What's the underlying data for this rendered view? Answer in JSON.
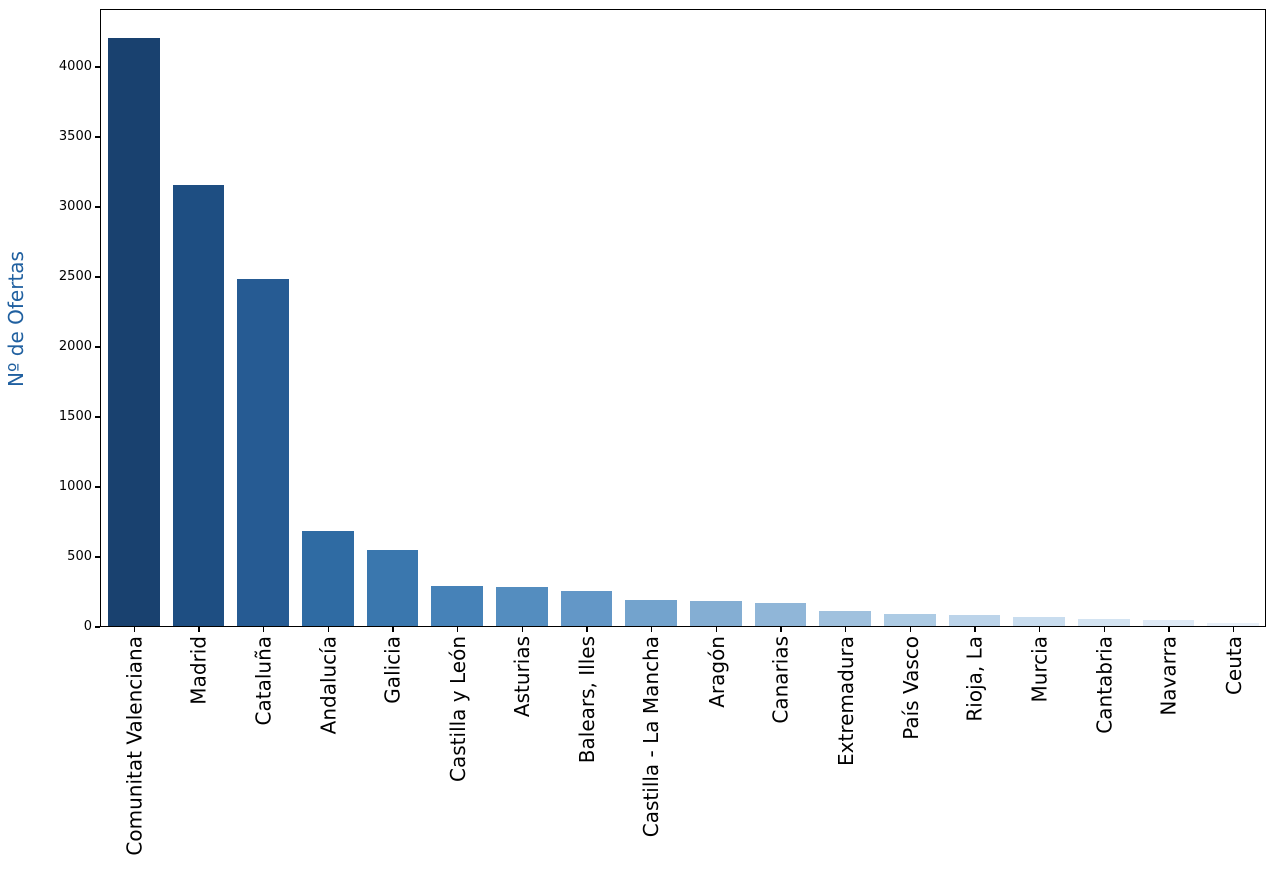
{
  "figure": {
    "background": "#ffffff",
    "spine_color": "#000000",
    "tick_color": "#000000",
    "ylabel_color": "#2060a0"
  },
  "chart_data": {
    "type": "bar",
    "title": "",
    "xlabel": "",
    "ylabel": "Nº de Ofertas",
    "grid": false,
    "legend": "none",
    "ylim": [
      0,
      4400
    ],
    "yticks": [
      0,
      500,
      1000,
      1500,
      2000,
      2500,
      3000,
      3500,
      4000
    ],
    "categories": [
      "Comunitat Valenciana",
      "Madrid",
      "Cataluña",
      "Andalucía",
      "Galicia",
      "Castilla y León",
      "Asturias",
      "Balears, Illes",
      "Castilla - La Mancha",
      "Aragón",
      "Canarias",
      "Extremadura",
      "País Vasco",
      "Rioja, La",
      "Murcia",
      "Cantabria",
      "Navarra",
      "Ceuta"
    ],
    "values": [
      4200,
      3150,
      2480,
      680,
      545,
      290,
      280,
      250,
      190,
      180,
      165,
      110,
      90,
      80,
      68,
      55,
      47,
      25
    ],
    "bar_colors": [
      "#19416f",
      "#1e4e82",
      "#265b93",
      "#2f6ba3",
      "#3a77ae",
      "#4682b8",
      "#548dbf",
      "#6397c7",
      "#73a3cd",
      "#84aed3",
      "#90b6d8",
      "#a0c1de",
      "#adcbe4",
      "#bcd4ea",
      "#c9ddef",
      "#d4e4f2",
      "#dfeaf6",
      "#e8f0f9"
    ]
  }
}
